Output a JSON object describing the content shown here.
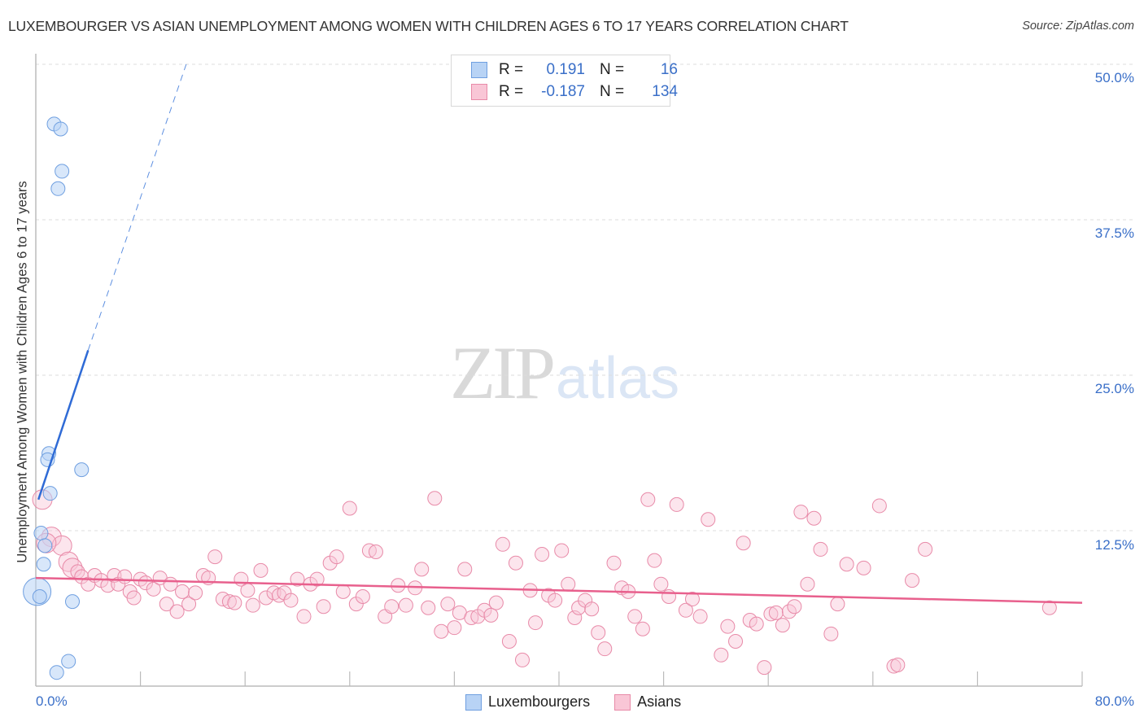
{
  "title": "LUXEMBOURGER VS ASIAN UNEMPLOYMENT AMONG WOMEN WITH CHILDREN AGES 6 TO 17 YEARS CORRELATION CHART",
  "source": "Source: ZipAtlas.com",
  "watermark": {
    "zip": "ZIP",
    "atlas": "atlas"
  },
  "legend": {
    "rows": [
      {
        "r_label": "R =",
        "r_value": "0.191",
        "n_label": "N =",
        "n_value": "16",
        "color": "#b8d3f5",
        "border": "#6f9fe0"
      },
      {
        "r_label": "R =",
        "r_value": "-0.187",
        "n_label": "N =",
        "n_value": "134",
        "color": "#f9c6d6",
        "border": "#e88aa8"
      }
    ]
  },
  "bottom_legend": [
    {
      "label": "Luxembourgers",
      "color": "#b8d3f5",
      "border": "#6f9fe0"
    },
    {
      "label": "Asians",
      "color": "#f9c6d6",
      "border": "#e88aa8"
    }
  ],
  "axes": {
    "ylabel": "Unemployment Among Women with Children Ages 6 to 17 years",
    "yticks": [
      "50.0%",
      "37.5%",
      "25.0%",
      "12.5%"
    ],
    "xticks": [
      "0.0%",
      "80.0%"
    ]
  },
  "colors": {
    "blue": "#3a6fc8",
    "blue_line": "#2f6bd6",
    "pink_line": "#e8608d",
    "grid": "#dddddd",
    "axis": "#bbbbbb"
  },
  "chart_data": {
    "type": "scatter",
    "title": "LUXEMBOURGER VS ASIAN UNEMPLOYMENT AMONG WOMEN WITH CHILDREN AGES 6 TO 17 YEARS CORRELATION CHART",
    "xlabel": "",
    "ylabel": "Unemployment Among Women with Children Ages 6 to 17 years",
    "xlim": [
      0,
      80
    ],
    "ylim": [
      0,
      50
    ],
    "x_tick_labels": [
      "0.0%",
      "80.0%"
    ],
    "y_tick_labels": [
      "12.5%",
      "25.0%",
      "37.5%",
      "50.0%"
    ],
    "grid": true,
    "legend_position": "bottom",
    "series": [
      {
        "name": "Luxembourgers",
        "r": 0.191,
        "n": 16,
        "points": [
          [
            1.4,
            45.2
          ],
          [
            1.9,
            44.8
          ],
          [
            2.0,
            41.4
          ],
          [
            1.7,
            40.0
          ],
          [
            1.0,
            18.7
          ],
          [
            0.9,
            18.2
          ],
          [
            3.5,
            17.4
          ],
          [
            1.1,
            15.5
          ],
          [
            0.4,
            12.3
          ],
          [
            0.7,
            11.3
          ],
          [
            0.6,
            9.8
          ],
          [
            0.1,
            7.6
          ],
          [
            0.3,
            7.2
          ],
          [
            2.8,
            6.8
          ],
          [
            2.5,
            2.0
          ],
          [
            1.6,
            1.1
          ]
        ],
        "trend": {
          "x0": 0.2,
          "y0": 15.0,
          "x1": 4.0,
          "y1": 27.0,
          "dashed_extension_to": [
            11.5,
            50.0
          ]
        }
      },
      {
        "name": "Asians",
        "r": -0.187,
        "n": 134,
        "points": [
          [
            0.5,
            15.0
          ],
          [
            1.2,
            12.0
          ],
          [
            2.0,
            11.3
          ],
          [
            2.5,
            10.0
          ],
          [
            2.8,
            9.5
          ],
          [
            3.2,
            9.2
          ],
          [
            3.5,
            8.8
          ],
          [
            4.0,
            8.2
          ],
          [
            4.5,
            8.9
          ],
          [
            5.0,
            8.5
          ],
          [
            5.5,
            8.1
          ],
          [
            6.0,
            8.9
          ],
          [
            6.3,
            8.2
          ],
          [
            6.8,
            8.8
          ],
          [
            7.2,
            7.6
          ],
          [
            7.5,
            7.1
          ],
          [
            8.0,
            8.6
          ],
          [
            8.4,
            8.3
          ],
          [
            9.0,
            7.8
          ],
          [
            9.5,
            8.7
          ],
          [
            10.0,
            6.6
          ],
          [
            10.3,
            8.2
          ],
          [
            10.8,
            6.0
          ],
          [
            11.2,
            7.6
          ],
          [
            11.7,
            6.6
          ],
          [
            12.2,
            7.5
          ],
          [
            12.8,
            8.9
          ],
          [
            13.2,
            8.7
          ],
          [
            13.7,
            10.4
          ],
          [
            14.3,
            7.0
          ],
          [
            14.8,
            6.8
          ],
          [
            15.2,
            6.7
          ],
          [
            15.7,
            8.6
          ],
          [
            16.2,
            7.7
          ],
          [
            16.6,
            6.5
          ],
          [
            17.2,
            9.3
          ],
          [
            17.6,
            7.1
          ],
          [
            18.2,
            7.5
          ],
          [
            18.6,
            7.3
          ],
          [
            19.0,
            7.5
          ],
          [
            19.5,
            6.9
          ],
          [
            20.0,
            8.6
          ],
          [
            20.5,
            5.6
          ],
          [
            21.0,
            8.2
          ],
          [
            21.5,
            8.6
          ],
          [
            22.0,
            6.4
          ],
          [
            22.5,
            9.9
          ],
          [
            23.0,
            10.4
          ],
          [
            23.5,
            7.6
          ],
          [
            24.0,
            14.3
          ],
          [
            24.5,
            6.6
          ],
          [
            25.0,
            7.2
          ],
          [
            25.5,
            10.9
          ],
          [
            26.0,
            10.8
          ],
          [
            26.7,
            5.6
          ],
          [
            27.2,
            6.4
          ],
          [
            27.7,
            8.1
          ],
          [
            28.3,
            6.5
          ],
          [
            29.0,
            7.9
          ],
          [
            29.5,
            9.4
          ],
          [
            30.0,
            6.3
          ],
          [
            30.5,
            15.1
          ],
          [
            31.0,
            4.4
          ],
          [
            31.5,
            6.6
          ],
          [
            32.0,
            4.7
          ],
          [
            32.4,
            5.9
          ],
          [
            32.8,
            9.4
          ],
          [
            33.3,
            5.5
          ],
          [
            33.8,
            5.6
          ],
          [
            34.3,
            6.1
          ],
          [
            34.8,
            5.7
          ],
          [
            35.2,
            6.7
          ],
          [
            35.7,
            11.4
          ],
          [
            36.2,
            3.6
          ],
          [
            36.7,
            9.9
          ],
          [
            37.2,
            2.1
          ],
          [
            37.8,
            7.7
          ],
          [
            38.2,
            5.1
          ],
          [
            38.7,
            10.6
          ],
          [
            39.2,
            7.3
          ],
          [
            39.7,
            6.9
          ],
          [
            40.2,
            10.9
          ],
          [
            40.7,
            8.2
          ],
          [
            41.2,
            5.5
          ],
          [
            41.5,
            6.3
          ],
          [
            42.0,
            6.9
          ],
          [
            42.5,
            6.2
          ],
          [
            43.0,
            4.3
          ],
          [
            43.5,
            3.0
          ],
          [
            44.2,
            9.9
          ],
          [
            44.8,
            7.9
          ],
          [
            45.3,
            7.6
          ],
          [
            45.8,
            5.6
          ],
          [
            46.4,
            4.6
          ],
          [
            46.8,
            15.0
          ],
          [
            47.3,
            10.1
          ],
          [
            47.8,
            8.2
          ],
          [
            48.4,
            7.2
          ],
          [
            49.0,
            14.6
          ],
          [
            49.7,
            6.1
          ],
          [
            50.2,
            7.0
          ],
          [
            50.8,
            5.6
          ],
          [
            51.4,
            13.4
          ],
          [
            52.4,
            2.5
          ],
          [
            52.9,
            4.8
          ],
          [
            53.5,
            3.6
          ],
          [
            54.1,
            11.5
          ],
          [
            54.6,
            5.3
          ],
          [
            55.1,
            5.0
          ],
          [
            55.7,
            1.5
          ],
          [
            56.2,
            5.8
          ],
          [
            56.6,
            5.9
          ],
          [
            57.1,
            4.9
          ],
          [
            57.6,
            6.0
          ],
          [
            58.0,
            6.4
          ],
          [
            58.5,
            14.0
          ],
          [
            59.0,
            8.2
          ],
          [
            59.5,
            13.5
          ],
          [
            60.0,
            11.0
          ],
          [
            60.8,
            4.2
          ],
          [
            61.3,
            6.6
          ],
          [
            62.0,
            9.8
          ],
          [
            63.3,
            9.5
          ],
          [
            64.5,
            14.5
          ],
          [
            65.6,
            1.6
          ],
          [
            65.9,
            1.7
          ],
          [
            67.0,
            8.5
          ],
          [
            68.0,
            11.0
          ],
          [
            77.5,
            6.3
          ],
          [
            0.8,
            11.5
          ]
        ],
        "trend": {
          "x0": 0.0,
          "y0": 8.7,
          "x1": 80.0,
          "y1": 6.7
        }
      }
    ]
  }
}
